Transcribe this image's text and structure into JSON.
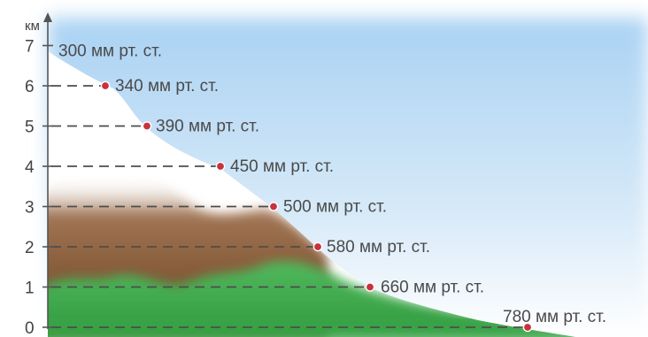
{
  "axis": {
    "unit": "км",
    "ticks": [
      "0",
      "1",
      "2",
      "3",
      "4",
      "5",
      "6",
      "7"
    ]
  },
  "pressure_levels": [
    {
      "altitude_km": 7,
      "label": "300 мм рт. ст."
    },
    {
      "altitude_km": 6,
      "label": "340 мм рт. ст."
    },
    {
      "altitude_km": 5,
      "label": "390 мм рт. ст."
    },
    {
      "altitude_km": 4,
      "label": "450 мм рт. ст."
    },
    {
      "altitude_km": 3,
      "label": "500 мм рт. ст."
    },
    {
      "altitude_km": 2,
      "label": "580 мм рт. ст."
    },
    {
      "altitude_km": 1,
      "label": "660 мм рт. ст."
    },
    {
      "altitude_km": 0,
      "label": "780 мм рт. ст."
    }
  ],
  "colors": {
    "sky": "#8fc3ee",
    "snow": "#ffffff",
    "rock": "#8a5f3c",
    "grass": "#3aa547",
    "marker": "#c8323c",
    "axis": "#555555",
    "leader": "#4d4d4d"
  }
}
